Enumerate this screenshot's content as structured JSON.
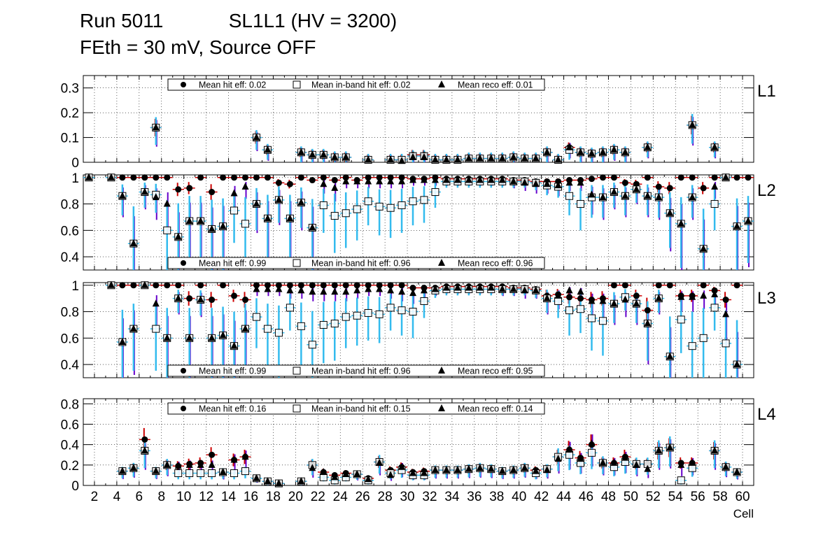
{
  "header": {
    "run_label": "Run 5011",
    "chamber_label": "SL1L1 (HV = 3200)",
    "conditions_label": "FEth = 30 mV, Source OFF"
  },
  "colors": {
    "frame": "#000000",
    "hit_error": "#cc0000",
    "inband_error": "#33bbee",
    "reco_error": "#6600cc"
  },
  "chart_data": [
    {
      "type": "scatter",
      "panel_label": "L1",
      "ylim": [
        0,
        0.35
      ],
      "yticks": [
        0,
        0.1,
        0.2,
        0.3
      ],
      "ytick_labels": [
        "0",
        "0.1",
        "0.2",
        "0.3"
      ],
      "xlim": [
        1,
        61
      ],
      "grid": true,
      "legend": [
        "Mean hit  eff: 0.02",
        "Mean in-band hit eff: 0.02",
        "Mean reco eff: 0.01"
      ],
      "legend_position": "top",
      "cells": [
        7,
        16,
        17,
        20,
        21,
        22,
        23,
        24,
        26,
        28,
        29,
        30,
        31,
        32,
        33,
        34,
        35,
        36,
        37,
        38,
        39,
        40,
        41,
        42,
        43,
        44,
        45,
        46,
        47,
        48,
        49,
        51,
        55,
        57
      ],
      "hit_eff": [
        0.14,
        0.1,
        0.05,
        0.04,
        0.03,
        0.03,
        0.02,
        0.02,
        0.01,
        0.01,
        0.01,
        0.03,
        0.03,
        0.01,
        0.01,
        0.01,
        0.015,
        0.015,
        0.015,
        0.015,
        0.02,
        0.015,
        0.015,
        0.04,
        0.01,
        0.06,
        0.04,
        0.035,
        0.04,
        0.05,
        0.04,
        0.06,
        0.15,
        0.06
      ],
      "inband_eff": [
        0.14,
        0.1,
        0.05,
        0.04,
        0.03,
        0.03,
        0.02,
        0.02,
        0.01,
        0.01,
        0.01,
        0.025,
        0.025,
        0.01,
        0.01,
        0.01,
        0.015,
        0.015,
        0.015,
        0.015,
        0.02,
        0.015,
        0.015,
        0.04,
        0.01,
        0.05,
        0.04,
        0.035,
        0.04,
        0.05,
        0.04,
        0.06,
        0.15,
        0.06
      ],
      "reco_eff": [
        0.14,
        0.1,
        0.05,
        0.04,
        0.03,
        0.03,
        0.02,
        0.02,
        0.01,
        0.01,
        0.005,
        0.02,
        0.02,
        0.01,
        0.01,
        0.01,
        0.015,
        0.015,
        0.015,
        0.015,
        0.02,
        0.015,
        0.015,
        0.04,
        0.01,
        0.06,
        0.04,
        0.035,
        0.04,
        0.05,
        0.04,
        0.06,
        0.15,
        0.06
      ]
    },
    {
      "type": "scatter",
      "panel_label": "L2",
      "ylim": [
        0.3,
        1.02
      ],
      "yticks": [
        0.4,
        0.6,
        0.8,
        1.0
      ],
      "ytick_labels": [
        "0.4",
        "0.6",
        "0.8",
        "1"
      ],
      "xlim": [
        1,
        61
      ],
      "grid": true,
      "legend": [
        "Mean hit  eff: 0.99",
        "Mean in-band hit eff: 0.96",
        "Mean reco eff: 0.96"
      ],
      "legend_position": "bottom",
      "cells": [
        1,
        3,
        4,
        5,
        6,
        7,
        8,
        9,
        10,
        11,
        12,
        13,
        14,
        15,
        16,
        17,
        18,
        19,
        20,
        21,
        22,
        23,
        24,
        25,
        26,
        27,
        28,
        29,
        30,
        31,
        32,
        33,
        34,
        35,
        36,
        37,
        38,
        39,
        40,
        41,
        42,
        43,
        44,
        45,
        46,
        47,
        48,
        49,
        50,
        51,
        52,
        53,
        54,
        55,
        56,
        57,
        58,
        59,
        60
      ],
      "hit_eff": [
        1,
        1,
        1,
        1,
        1,
        1,
        1,
        0.91,
        0.92,
        1,
        0.89,
        1,
        1,
        1,
        1,
        1,
        0.96,
        0.95,
        1,
        0.98,
        1,
        0.98,
        1,
        0.98,
        1,
        1,
        1,
        1,
        0.99,
        0.99,
        1,
        0.99,
        0.99,
        0.99,
        0.99,
        0.99,
        0.99,
        0.98,
        0.98,
        0.97,
        0.97,
        0.97,
        0.98,
        0.98,
        0.99,
        1,
        1,
        0.96,
        0.95,
        1,
        0.93,
        0.92,
        1,
        1,
        0.92,
        1,
        1,
        1,
        1
      ],
      "inband_eff": [
        1,
        1,
        0.86,
        0.5,
        0.89,
        0.87,
        0.6,
        0.55,
        0.67,
        0.67,
        0.61,
        0.63,
        0.75,
        0.65,
        0.8,
        0.69,
        0.83,
        0.69,
        0.81,
        0.62,
        0.79,
        0.71,
        0.73,
        0.76,
        0.82,
        0.78,
        0.77,
        0.79,
        0.82,
        0.83,
        0.89,
        0.97,
        0.97,
        0.97,
        0.97,
        0.97,
        0.97,
        0.97,
        0.97,
        0.96,
        0.94,
        0.93,
        0.86,
        0.8,
        0.85,
        0.85,
        0.89,
        0.86,
        0.91,
        0.86,
        0.85,
        0.73,
        0.65,
        0.85,
        0.46,
        0.8,
        1,
        0.63,
        0.67
      ],
      "reco_eff": [
        1,
        1,
        0.86,
        0.5,
        0.89,
        0.85,
        0.8,
        0.55,
        0.67,
        0.67,
        0.61,
        0.63,
        0.88,
        0.93,
        0.8,
        0.69,
        0.83,
        0.69,
        0.81,
        0.62,
        0.95,
        0.92,
        0.97,
        0.97,
        0.97,
        0.97,
        0.97,
        0.97,
        0.98,
        0.98,
        0.98,
        0.98,
        0.98,
        0.98,
        0.98,
        0.98,
        0.98,
        0.97,
        0.96,
        0.95,
        0.95,
        0.94,
        0.96,
        0.96,
        0.87,
        0.85,
        0.89,
        0.86,
        0.91,
        0.86,
        0.85,
        0.73,
        0.65,
        0.85,
        0.46,
        0.93,
        1,
        0.63,
        0.67
      ]
    },
    {
      "type": "scatter",
      "panel_label": "L3",
      "ylim": [
        0.3,
        1.02
      ],
      "yticks": [
        0.4,
        0.6,
        0.8,
        1.0
      ],
      "ytick_labels": [
        "0.4",
        "0.6",
        "0.8",
        "1"
      ],
      "xlim": [
        1,
        61
      ],
      "grid": true,
      "legend": [
        "Mean hit  eff: 0.99",
        "Mean in-band hit eff: 0.96",
        "Mean reco eff: 0.95"
      ],
      "legend_position": "bottom",
      "cells": [
        3,
        4,
        5,
        6,
        7,
        8,
        9,
        10,
        11,
        12,
        13,
        14,
        15,
        16,
        17,
        18,
        19,
        20,
        21,
        22,
        23,
        24,
        25,
        26,
        27,
        28,
        29,
        30,
        31,
        32,
        33,
        34,
        35,
        36,
        37,
        38,
        39,
        40,
        41,
        42,
        43,
        44,
        45,
        46,
        47,
        48,
        49,
        50,
        51,
        52,
        53,
        54,
        55,
        56,
        57,
        58,
        59
      ],
      "hit_eff": [
        1,
        1,
        1,
        1,
        1,
        1,
        1,
        0.9,
        1,
        0.89,
        1,
        0.92,
        0.89,
        1,
        1,
        1,
        1,
        1,
        1,
        1,
        1,
        1,
        1,
        1,
        1,
        1,
        1,
        0.98,
        0.98,
        0.98,
        0.99,
        0.99,
        0.99,
        0.99,
        0.99,
        0.99,
        0.98,
        0.98,
        0.97,
        0.92,
        0.93,
        0.91,
        0.9,
        0.89,
        0.9,
        1,
        1,
        0.92,
        0.81,
        1,
        1,
        0.92,
        0.92,
        1,
        0.96,
        0.89,
        1
      ],
      "inband_eff": [
        1,
        0.57,
        0.67,
        1,
        0.67,
        0.6,
        0.9,
        0.6,
        0.89,
        0.6,
        0.62,
        0.54,
        0.67,
        0.76,
        0.67,
        0.64,
        0.83,
        0.69,
        0.55,
        0.7,
        0.71,
        0.76,
        0.77,
        0.79,
        0.78,
        0.83,
        0.81,
        0.8,
        0.88,
        0.96,
        0.97,
        0.97,
        0.97,
        0.97,
        0.97,
        0.97,
        0.97,
        0.97,
        0.96,
        0.9,
        0.88,
        0.81,
        0.82,
        0.75,
        0.73,
        0.86,
        0.91,
        0.86,
        0.71,
        0.9,
        0.46,
        0.74,
        0.54,
        0.6,
        0.83,
        0.56,
        0.4
      ],
      "reco_eff": [
        1,
        0.57,
        0.67,
        1,
        0.86,
        0.6,
        0.9,
        0.6,
        0.89,
        0.6,
        0.62,
        0.54,
        0.67,
        0.97,
        0.97,
        0.97,
        0.96,
        0.96,
        0.95,
        0.95,
        0.95,
        0.95,
        0.96,
        0.97,
        0.97,
        0.96,
        0.95,
        0.94,
        0.96,
        0.97,
        0.98,
        0.98,
        0.98,
        0.98,
        0.98,
        0.97,
        0.97,
        0.96,
        0.96,
        0.9,
        0.92,
        0.96,
        0.95,
        0.88,
        0.88,
        0.86,
        0.89,
        0.86,
        0.71,
        0.9,
        0.46,
        0.91,
        0.91,
        0.92,
        0.93,
        0.78,
        0.4
      ]
    },
    {
      "type": "scatter",
      "panel_label": "L4",
      "ylim": [
        0,
        0.85
      ],
      "yticks": [
        0,
        0.2,
        0.4,
        0.6,
        0.8
      ],
      "ytick_labels": [
        "0",
        "0.2",
        "0.4",
        "0.6",
        "0.8"
      ],
      "xlim": [
        1,
        61
      ],
      "grid": true,
      "legend": [
        "Mean hit  eff: 0.16",
        "Mean in-band hit eff: 0.15",
        "Mean reco eff: 0.14"
      ],
      "legend_position": "top",
      "xticks": [
        2,
        4,
        6,
        8,
        10,
        12,
        14,
        16,
        18,
        20,
        22,
        24,
        26,
        28,
        30,
        32,
        34,
        36,
        38,
        40,
        42,
        44,
        46,
        48,
        50,
        52,
        54,
        56,
        58,
        60
      ],
      "xtick_labels": [
        "2",
        "4",
        "6",
        "8",
        "10",
        "12",
        "14",
        "16",
        "18",
        "20",
        "22",
        "24",
        "26",
        "28",
        "30",
        "32",
        "34",
        "36",
        "38",
        "40",
        "42",
        "44",
        "46",
        "48",
        "50",
        "52",
        "54",
        "56",
        "58",
        "60"
      ],
      "xlabel": "Cell",
      "cells": [
        4,
        5,
        6,
        7,
        8,
        9,
        10,
        11,
        12,
        13,
        14,
        15,
        16,
        17,
        18,
        20,
        21,
        22,
        23,
        24,
        25,
        26,
        27,
        28,
        29,
        30,
        31,
        32,
        33,
        34,
        35,
        36,
        37,
        38,
        39,
        40,
        41,
        42,
        43,
        44,
        45,
        46,
        47,
        48,
        49,
        50,
        51,
        52,
        53,
        54,
        55,
        57,
        58,
        59
      ],
      "hit_eff": [
        0.14,
        0.17,
        0.45,
        0.14,
        0.2,
        0.19,
        0.21,
        0.22,
        0.3,
        0.13,
        0.25,
        0.28,
        0.07,
        0.04,
        0.02,
        0.04,
        0.2,
        0.13,
        0.1,
        0.12,
        0.11,
        0.07,
        0.23,
        0.15,
        0.18,
        0.13,
        0.14,
        0.15,
        0.15,
        0.15,
        0.16,
        0.17,
        0.16,
        0.14,
        0.15,
        0.17,
        0.15,
        0.16,
        0.28,
        0.35,
        0.27,
        0.4,
        0.22,
        0.22,
        0.28,
        0.21,
        0.21,
        0.34,
        0.37,
        0.22,
        0.22,
        0.34,
        0.18,
        0.13
      ],
      "inband_eff": [
        0.14,
        0.17,
        0.34,
        0.14,
        0.2,
        0.12,
        0.12,
        0.12,
        0.12,
        0.13,
        0.12,
        0.14,
        0.07,
        0.04,
        0.02,
        0.04,
        0.2,
        0.08,
        0.05,
        0.08,
        0.11,
        0.05,
        0.23,
        0.12,
        0.15,
        0.1,
        0.1,
        0.15,
        0.15,
        0.15,
        0.16,
        0.17,
        0.16,
        0.14,
        0.15,
        0.17,
        0.12,
        0.16,
        0.28,
        0.3,
        0.22,
        0.32,
        0.22,
        0.18,
        0.23,
        0.21,
        0.21,
        0.34,
        0.37,
        0.05,
        0.17,
        0.34,
        0.18,
        0.13
      ],
      "reco_eff": [
        0.14,
        0.17,
        0.34,
        0.14,
        0.2,
        0.19,
        0.2,
        0.2,
        0.2,
        0.13,
        0.25,
        0.28,
        0.07,
        0.04,
        0.02,
        0.04,
        0.17,
        0.13,
        0.08,
        0.11,
        0.11,
        0.06,
        0.22,
        0.1,
        0.18,
        0.12,
        0.12,
        0.15,
        0.15,
        0.15,
        0.16,
        0.17,
        0.16,
        0.14,
        0.15,
        0.17,
        0.14,
        0.15,
        0.26,
        0.35,
        0.26,
        0.41,
        0.22,
        0.22,
        0.27,
        0.2,
        0.16,
        0.34,
        0.37,
        0.2,
        0.22,
        0.34,
        0.18,
        0.13
      ]
    }
  ]
}
